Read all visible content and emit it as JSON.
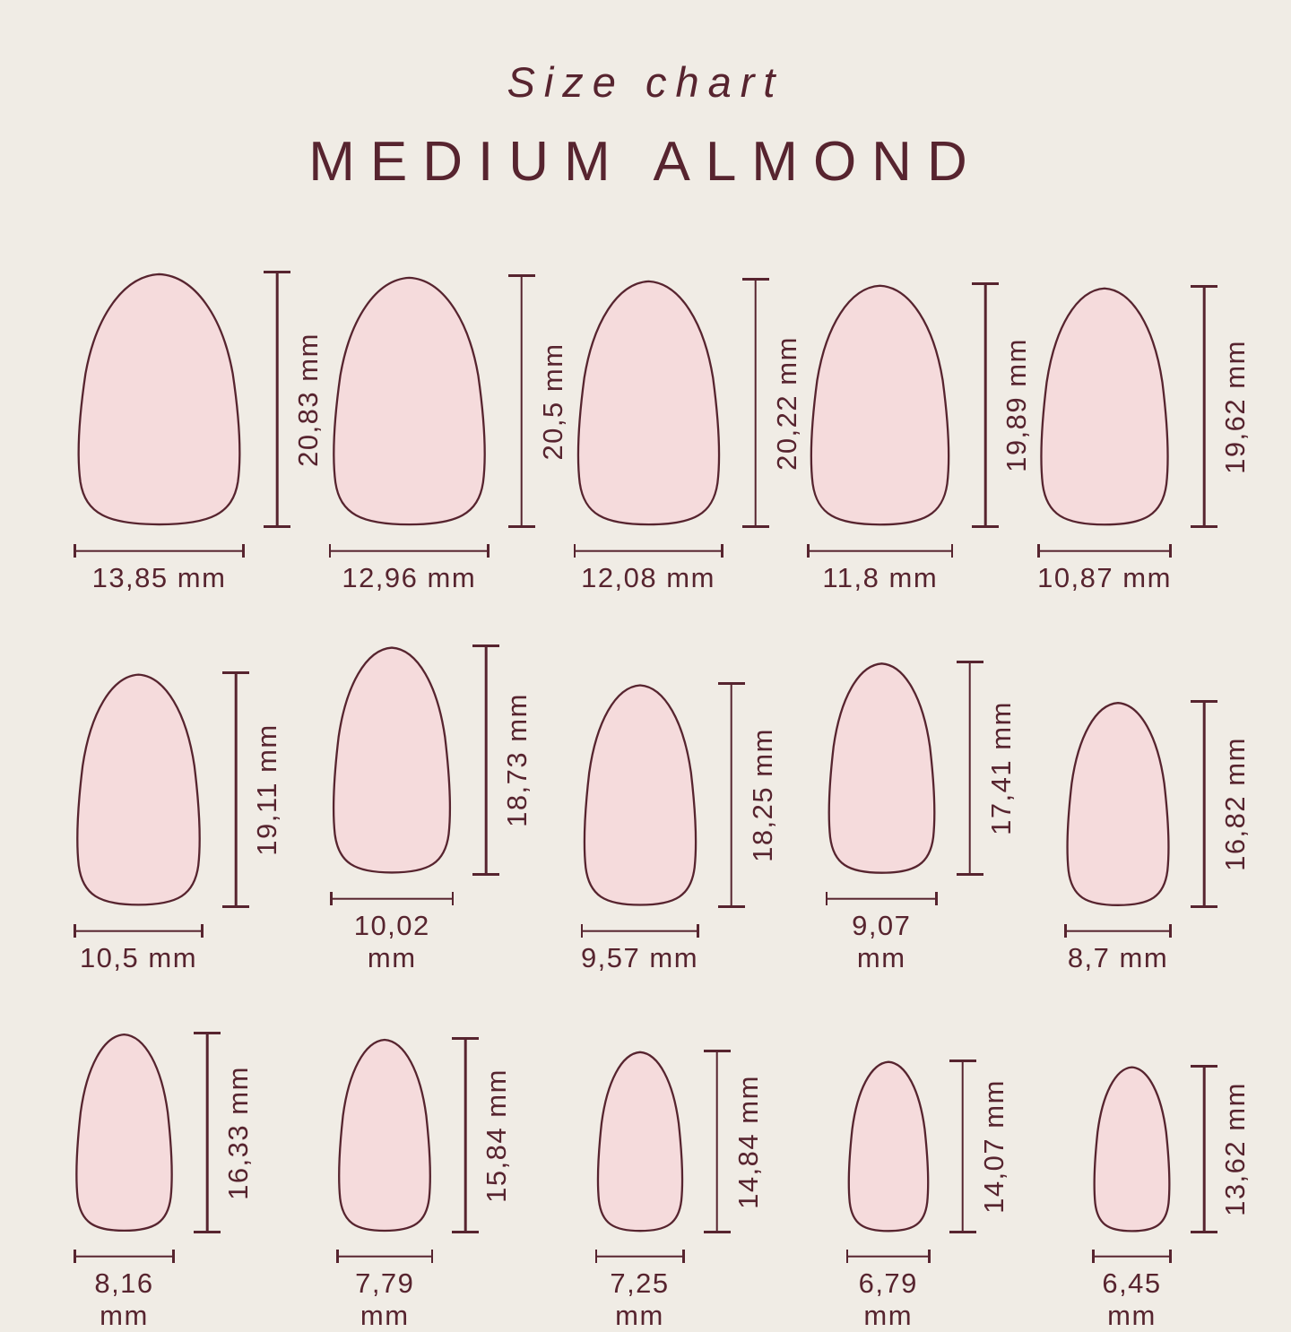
{
  "title": "Size chart",
  "subtitle": "MEDIUM ALMOND",
  "colors": {
    "background": "#f0ece5",
    "nail_fill": "#f5dbdc",
    "outline": "#57242f",
    "text": "#57242f"
  },
  "chart_data": {
    "type": "diagram",
    "title": "Size chart",
    "subtitle": "MEDIUM ALMOND",
    "unit": "mm",
    "description": "15 nail size diagrams in 3 rows of 5, each with a vertical height ruler and horizontal width ruler",
    "rows": [
      {
        "nails": [
          {
            "height_mm": 20.83,
            "width_mm": 13.85,
            "height_label": "20,83 mm",
            "width_label": "13,85 mm"
          },
          {
            "height_mm": 20.5,
            "width_mm": 12.96,
            "height_label": "20,5 mm",
            "width_label": "12,96 mm"
          },
          {
            "height_mm": 20.22,
            "width_mm": 12.08,
            "height_label": "20,22 mm",
            "width_label": "12,08 mm"
          },
          {
            "height_mm": 19.89,
            "width_mm": 11.8,
            "height_label": "19,89 mm",
            "width_label": "11,8 mm"
          },
          {
            "height_mm": 19.62,
            "width_mm": 10.87,
            "height_label": "19,62 mm",
            "width_label": "10,87 mm"
          }
        ]
      },
      {
        "nails": [
          {
            "height_mm": 19.11,
            "width_mm": 10.5,
            "height_label": "19,11 mm",
            "width_label": "10,5 mm"
          },
          {
            "height_mm": 18.73,
            "width_mm": 10.02,
            "height_label": "18,73 mm",
            "width_label": "10,02 mm"
          },
          {
            "height_mm": 18.25,
            "width_mm": 9.57,
            "height_label": "18,25 mm",
            "width_label": "9,57 mm"
          },
          {
            "height_mm": 17.41,
            "width_mm": 9.07,
            "height_label": "17,41 mm",
            "width_label": "9,07 mm"
          },
          {
            "height_mm": 16.82,
            "width_mm": 8.7,
            "height_label": "16,82 mm",
            "width_label": "8,7 mm"
          }
        ]
      },
      {
        "nails": [
          {
            "height_mm": 16.33,
            "width_mm": 8.16,
            "height_label": "16,33 mm",
            "width_label": "8,16 mm"
          },
          {
            "height_mm": 15.84,
            "width_mm": 7.79,
            "height_label": "15,84 mm",
            "width_label": "7,79 mm"
          },
          {
            "height_mm": 14.84,
            "width_mm": 7.25,
            "height_label": "14,84 mm",
            "width_label": "7,25 mm"
          },
          {
            "height_mm": 14.07,
            "width_mm": 6.79,
            "height_label": "14,07 mm",
            "width_label": "6,79 mm"
          },
          {
            "height_mm": 13.62,
            "width_mm": 6.45,
            "height_label": "13,62 mm",
            "width_label": "6,45 mm"
          }
        ]
      }
    ]
  }
}
